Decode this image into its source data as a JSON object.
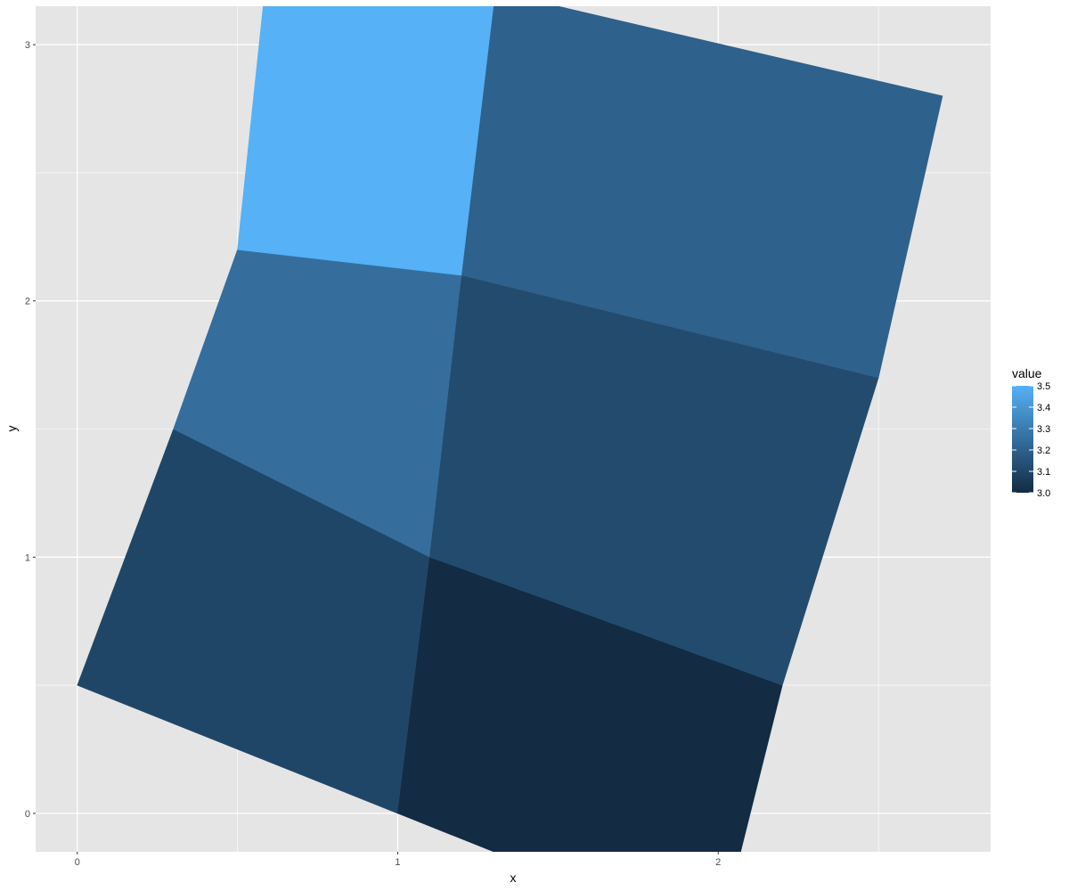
{
  "chart_data": {
    "type": "polygon",
    "xlabel": "x",
    "ylabel": "y",
    "xlim": [
      -0.13,
      2.85
    ],
    "ylim": [
      -0.15,
      3.15
    ],
    "x_ticks": [
      0,
      1,
      2
    ],
    "y_ticks": [
      0,
      1,
      2,
      3
    ],
    "x_tick_labels": [
      "0",
      "1",
      "2"
    ],
    "y_tick_labels": [
      "0",
      "1",
      "2",
      "3"
    ],
    "x_minor_gridlines": [
      0.5,
      1.5,
      2.5
    ],
    "y_minor_gridlines": [
      0.5,
      1.5,
      2.5
    ],
    "grid": true,
    "legend": {
      "title": "value",
      "position": "right",
      "range": [
        3.0,
        3.5
      ],
      "breaks": [
        3.0,
        3.1,
        3.2,
        3.3,
        3.4,
        3.5
      ],
      "labels": [
        "3.0",
        "3.1",
        "3.2",
        "3.3",
        "3.4",
        "3.5"
      ],
      "low_color": "#132B43",
      "high_color": "#56B1F7"
    },
    "colors": {
      "panel_background": "#E5E5E5",
      "gridline": "#FFFFFF"
    },
    "polygons": [
      {
        "id": "bottom-left",
        "value": 3.1,
        "points": [
          [
            0,
            0.5
          ],
          [
            1,
            0
          ],
          [
            1.1,
            1
          ],
          [
            0.3,
            1.5
          ]
        ]
      },
      {
        "id": "bottom-right",
        "value": 3.0,
        "points": [
          [
            1,
            0
          ],
          [
            1.3,
            -0.15
          ],
          [
            2.07,
            -0.15
          ],
          [
            2.2,
            0.5
          ],
          [
            1.1,
            1
          ]
        ]
      },
      {
        "id": "middle-left",
        "value": 3.25,
        "points": [
          [
            0.3,
            1.5
          ],
          [
            1.1,
            1
          ],
          [
            1.2,
            2.1
          ],
          [
            0.5,
            2.2
          ]
        ]
      },
      {
        "id": "middle-right",
        "value": 3.12,
        "points": [
          [
            1.1,
            1
          ],
          [
            2.2,
            0.5
          ],
          [
            2.5,
            1.7
          ],
          [
            1.2,
            2.1
          ]
        ]
      },
      {
        "id": "top-left",
        "value": 3.5,
        "points": [
          [
            0.5,
            2.2
          ],
          [
            1.2,
            2.1
          ],
          [
            1.3,
            3.15
          ],
          [
            0.58,
            3.15
          ]
        ]
      },
      {
        "id": "top-right",
        "value": 3.2,
        "points": [
          [
            1.2,
            2.1
          ],
          [
            2.5,
            1.7
          ],
          [
            2.7,
            2.8
          ],
          [
            1.5,
            3.15
          ],
          [
            1.3,
            3.15
          ]
        ]
      }
    ]
  }
}
